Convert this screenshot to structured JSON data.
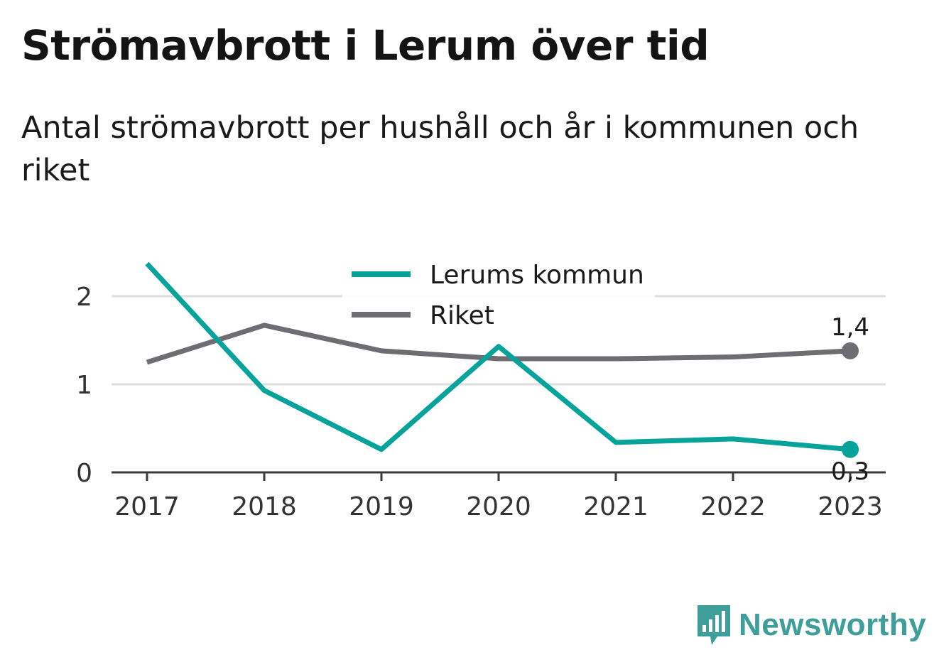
{
  "title": "Strömavbrott i Lerum över tid",
  "subtitle": "Antal strömavbrott per hushåll och år i kommunen och riket",
  "brand": {
    "name": "Newsworthy",
    "icon": "newsworthy-logo-icon",
    "color": "#3d9e9a"
  },
  "chart_data": {
    "type": "line",
    "x": [
      "2017",
      "2018",
      "2019",
      "2020",
      "2021",
      "2022",
      "2023"
    ],
    "series": [
      {
        "name": "Lerums kommun",
        "color": "#06a39a",
        "values": [
          2.37,
          0.93,
          0.26,
          1.43,
          0.34,
          0.38,
          0.26
        ],
        "end_label": "0,3"
      },
      {
        "name": "Riket",
        "color": "#6e6d72",
        "values": [
          1.25,
          1.67,
          1.38,
          1.29,
          1.29,
          1.31,
          1.38
        ],
        "end_label": "1,4"
      }
    ],
    "yticks": [
      "0",
      "1",
      "2"
    ],
    "ylim": [
      0,
      2.4
    ],
    "grid": true,
    "legend": "top-center"
  }
}
